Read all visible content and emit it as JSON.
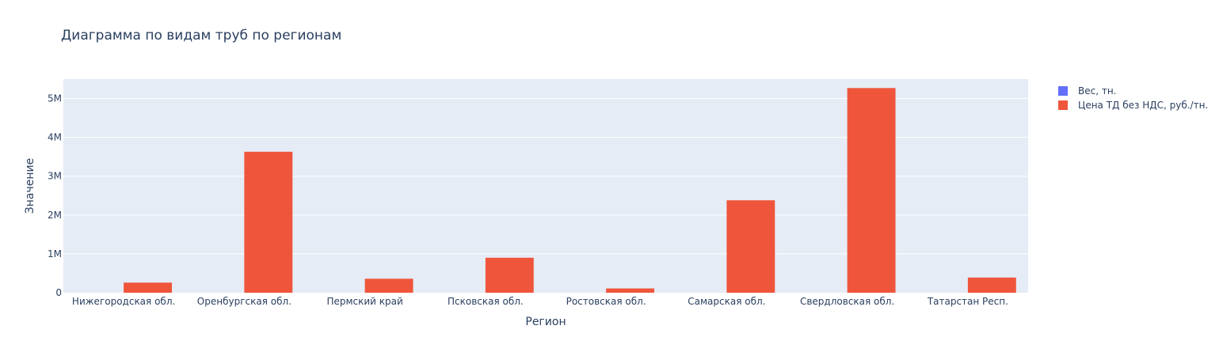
{
  "chart_data": {
    "type": "bar",
    "title": "Диаграмма по видам труб по регионам",
    "xlabel": "Регион",
    "ylabel": "Значение",
    "categories": [
      "Нижегородская обл.",
      "Оренбургская обл.",
      "Пермский край",
      "Псковская обл.",
      "Ростовская обл.",
      "Самарская обл.",
      "Свердловская обл.",
      "Татарстан  Респ."
    ],
    "series": [
      {
        "name": "Вес, тн.",
        "color": "#636efa",
        "values": [
          0,
          0,
          0,
          0,
          0,
          0,
          0,
          0
        ]
      },
      {
        "name": "Цена ТД без НДС, руб./тн.",
        "color": "#ef553b",
        "values": [
          260000,
          3630000,
          360000,
          900000,
          110000,
          2380000,
          5270000,
          390000
        ]
      }
    ],
    "ylim": [
      0,
      5500000
    ],
    "yticks": [
      0,
      1000000,
      2000000,
      3000000,
      4000000,
      5000000
    ],
    "ytick_labels": [
      "0",
      "1M",
      "2M",
      "3M",
      "4M",
      "5M"
    ],
    "grid": true,
    "legend_position": "top-right",
    "plot_background": "#e5ecf6",
    "barmode": "group"
  }
}
